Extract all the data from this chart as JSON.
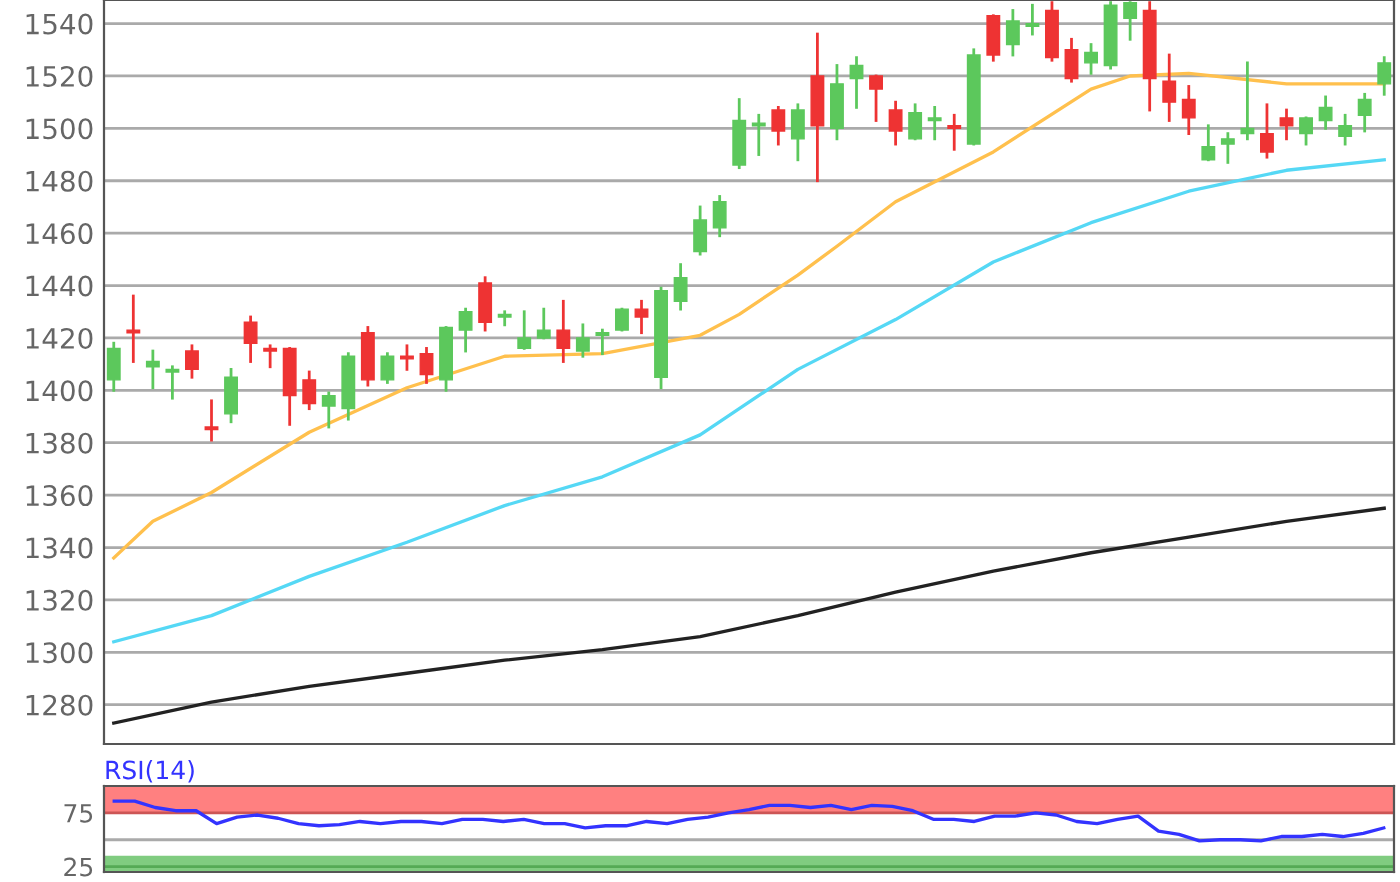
{
  "chart_data": [
    {
      "type": "candlestick",
      "categories": [
        null,
        null,
        null,
        null,
        null,
        null,
        null,
        null,
        null,
        null,
        null,
        null,
        null,
        null,
        null,
        null,
        null,
        null,
        null,
        null,
        null,
        null,
        null,
        null,
        null,
        null,
        null,
        null,
        null,
        null,
        null,
        null,
        null,
        null,
        null,
        null,
        null,
        null,
        null,
        null,
        null,
        null,
        null,
        null,
        null,
        null,
        null,
        null,
        null,
        null,
        null,
        null,
        null,
        null,
        null,
        null,
        null,
        null,
        null,
        null,
        null,
        null,
        null,
        null,
        null,
        null
      ],
      "ohlc": [
        [
          1404,
          1418,
          1400,
          1416
        ],
        [
          1423,
          1436,
          1411,
          1422
        ],
        [
          1409,
          1415,
          1401,
          1411
        ],
        [
          1407,
          1409,
          1397,
          1408
        ],
        [
          1415,
          1417,
          1405,
          1408
        ],
        [
          1386,
          1396,
          1381,
          1385
        ],
        [
          1391,
          1408,
          1388,
          1405
        ],
        [
          1426,
          1428,
          1411,
          1418
        ],
        [
          1416,
          1417,
          1409,
          1415
        ],
        [
          1416,
          1416,
          1387,
          1398
        ],
        [
          1404,
          1407,
          1393,
          1395
        ],
        [
          1394,
          1399,
          1386,
          1398
        ],
        [
          1393,
          1414,
          1389,
          1413
        ],
        [
          1422,
          1424,
          1402,
          1404
        ],
        [
          1404,
          1414,
          1403,
          1413
        ],
        [
          1413,
          1417,
          1408,
          1412
        ],
        [
          1414,
          1416,
          1403,
          1406
        ],
        [
          1404,
          1424,
          1400,
          1424
        ],
        [
          1423,
          1431,
          1415,
          1430
        ],
        [
          1441,
          1443,
          1423,
          1426
        ],
        [
          1428,
          1430,
          1425,
          1429
        ],
        [
          1416,
          1430,
          1416,
          1420
        ],
        [
          1420,
          1431,
          1420,
          1423
        ],
        [
          1423,
          1434,
          1411,
          1416
        ],
        [
          1415,
          1425,
          1413,
          1420
        ],
        [
          1421,
          1423,
          1414,
          1422
        ],
        [
          1423,
          1431,
          1423,
          1431
        ],
        [
          1431,
          1434,
          1422,
          1428
        ],
        [
          1405,
          1439,
          1401,
          1438
        ],
        [
          1434,
          1448,
          1431,
          1443
        ],
        [
          1453,
          1470,
          1452,
          1465
        ],
        [
          1462,
          1474,
          1459,
          1472
        ],
        [
          1486,
          1511,
          1485,
          1503
        ],
        [
          1501,
          1505,
          1490,
          1502
        ],
        [
          1507,
          1508,
          1494,
          1499
        ],
        [
          1496,
          1509,
          1488,
          1507
        ],
        [
          1520,
          1536,
          1480,
          1501
        ],
        [
          1500,
          1524,
          1496,
          1517
        ],
        [
          1519,
          1527,
          1508,
          1524
        ],
        [
          1520,
          1520,
          1503,
          1515
        ],
        [
          1507,
          1510,
          1494,
          1499
        ],
        [
          1496,
          1509,
          1496,
          1506
        ],
        [
          1503,
          1508,
          1496,
          1504
        ],
        [
          1501,
          1505,
          1492,
          1500
        ],
        [
          1494,
          1530,
          1494,
          1528
        ],
        [
          1543,
          1543,
          1526,
          1528
        ],
        [
          1532,
          1545,
          1528,
          1541
        ],
        [
          1539,
          1547,
          1536,
          1540
        ],
        [
          1545,
          1548,
          1526,
          1527
        ],
        [
          1530,
          1534,
          1518,
          1519
        ],
        [
          1525,
          1532,
          1521,
          1529
        ],
        [
          1524,
          1548,
          1523,
          1547
        ],
        [
          1542,
          1548,
          1534,
          1548
        ],
        [
          1545,
          1548,
          1507,
          1519
        ],
        [
          1518,
          1528,
          1503,
          1510
        ],
        [
          1511,
          1516,
          1498,
          1504
        ],
        [
          1488,
          1501,
          1488,
          1493
        ],
        [
          1494,
          1498,
          1487,
          1496
        ],
        [
          1498,
          1525,
          1496,
          1500
        ],
        [
          1498,
          1509,
          1489,
          1491
        ],
        [
          1504,
          1507,
          1496,
          1501
        ],
        [
          1498,
          1504,
          1494,
          1504
        ],
        [
          1503,
          1512,
          1500,
          1508
        ],
        [
          1497,
          1505,
          1494,
          1501
        ],
        [
          1505,
          1513,
          1499,
          1511
        ],
        [
          1517,
          1527,
          1513,
          1525
        ]
      ],
      "colors": [
        "#5cc85c",
        "#ee3333",
        "#5cc85c",
        "#5cc85c",
        "#ee3333",
        "#ee3333",
        "#5cc85c",
        "#ee3333",
        "#ee3333",
        "#ee3333",
        "#ee3333",
        "#5cc85c",
        "#5cc85c",
        "#ee3333",
        "#5cc85c",
        "#ee3333",
        "#ee3333",
        "#5cc85c",
        "#5cc85c",
        "#ee3333",
        "#5cc85c",
        "#5cc85c",
        "#5cc85c",
        "#ee3333",
        "#5cc85c",
        "#5cc85c",
        "#5cc85c",
        "#ee3333",
        "#5cc85c",
        "#5cc85c",
        "#5cc85c",
        "#5cc85c",
        "#5cc85c",
        "#5cc85c",
        "#ee3333",
        "#5cc85c",
        "#ee3333",
        "#5cc85c",
        "#5cc85c",
        "#ee3333",
        "#ee3333",
        "#5cc85c",
        "#5cc85c",
        "#ee3333",
        "#5cc85c",
        "#ee3333",
        "#5cc85c",
        "#5cc85c",
        "#ee3333",
        "#ee3333",
        "#5cc85c",
        "#5cc85c",
        "#5cc85c",
        "#ee3333",
        "#ee3333",
        "#ee3333",
        "#5cc85c",
        "#5cc85c",
        "#5cc85c",
        "#ee3333",
        "#ee3333",
        "#5cc85c",
        "#5cc85c",
        "#5cc85c",
        "#5cc85c",
        "#5cc85c"
      ],
      "series": [
        {
          "type": "line",
          "color": "#ffc04d",
          "values": [
            1336,
            null,
            1350,
            null,
            null,
            1361,
            null,
            null,
            null,
            null,
            1384,
            null,
            null,
            null,
            null,
            1401,
            null,
            null,
            null,
            null,
            1413,
            null,
            null,
            null,
            null,
            1414,
            null,
            null,
            null,
            null,
            1421,
            null,
            1429,
            null,
            null,
            1444,
            null,
            1455,
            null,
            null,
            1472,
            null,
            null,
            null,
            null,
            1491,
            null,
            null,
            null,
            null,
            1515,
            null,
            1520,
            null,
            null,
            1521,
            null,
            null,
            null,
            null,
            1517,
            null,
            null,
            null,
            null,
            1517
          ]
        },
        {
          "type": "line",
          "color": "#55d8f5",
          "values": [
            1304,
            null,
            null,
            null,
            null,
            1314,
            null,
            null,
            null,
            null,
            1329,
            null,
            null,
            null,
            null,
            1342,
            null,
            null,
            null,
            null,
            1356,
            null,
            null,
            null,
            null,
            1367,
            null,
            null,
            null,
            null,
            1383,
            null,
            null,
            null,
            null,
            1408,
            null,
            null,
            null,
            null,
            1427,
            null,
            null,
            null,
            null,
            1449,
            null,
            null,
            null,
            null,
            1464,
            null,
            null,
            null,
            null,
            1476,
            null,
            null,
            null,
            null,
            1484,
            null,
            null,
            null,
            null,
            1488
          ]
        },
        {
          "type": "line",
          "color": "#222222",
          "values": [
            1273,
            null,
            null,
            null,
            null,
            1281,
            null,
            null,
            null,
            null,
            1287,
            null,
            null,
            null,
            null,
            1292,
            null,
            null,
            null,
            null,
            1297,
            null,
            null,
            null,
            null,
            1301,
            null,
            null,
            null,
            null,
            1306,
            null,
            null,
            null,
            null,
            1314,
            null,
            null,
            null,
            null,
            1323,
            null,
            null,
            null,
            null,
            1331,
            null,
            null,
            null,
            null,
            1338,
            null,
            null,
            null,
            null,
            1344,
            null,
            null,
            null,
            null,
            1350,
            null,
            null,
            null,
            null,
            1355
          ]
        }
      ],
      "ylim": [
        1265,
        1549
      ],
      "yticks": [
        1280,
        1300,
        1320,
        1340,
        1360,
        1380,
        1400,
        1420,
        1440,
        1460,
        1480,
        1500,
        1520,
        1540
      ],
      "grid": "y",
      "tick_labels": "y"
    },
    {
      "type": "line",
      "title": "RSI(14)",
      "categories": [
        null,
        null,
        null,
        null,
        null,
        null,
        null,
        null,
        null,
        null,
        null,
        null,
        null,
        null,
        null,
        null,
        null,
        null,
        null,
        null,
        null,
        null,
        null,
        null,
        null,
        null,
        null,
        null,
        null,
        null,
        null,
        null,
        null,
        null,
        null,
        null,
        null,
        null,
        null,
        null,
        null,
        null,
        null,
        null,
        null,
        null,
        null,
        null,
        null,
        null,
        null,
        null,
        null,
        null,
        null,
        null,
        null,
        null,
        null,
        null,
        null,
        null,
        null
      ],
      "series": [
        {
          "color": "#3333ff",
          "values": [
            86,
            86,
            80,
            77,
            77,
            65,
            71,
            73,
            70,
            65,
            63,
            64,
            67,
            65,
            67,
            67,
            65,
            69,
            69,
            67,
            69,
            65,
            65,
            61,
            63,
            63,
            67,
            65,
            69,
            71,
            75,
            78,
            82,
            82,
            80,
            82,
            78,
            82,
            81,
            77,
            69,
            69,
            67,
            72,
            72,
            75,
            73,
            67,
            65,
            69,
            72,
            58,
            55,
            49,
            50,
            50,
            49,
            53,
            53,
            55,
            53,
            56,
            61
          ]
        }
      ],
      "bands": [
        {
          "axis": "y",
          "from": 75,
          "to": 100,
          "color": "#ff8080"
        },
        {
          "axis": "y",
          "from": 20,
          "to": 35,
          "color": "#80cc80"
        }
      ],
      "ref_lines": [
        {
          "axis": "y",
          "value": 75,
          "color": "#cc5555"
        },
        {
          "axis": "y",
          "value": 50,
          "color": "#aaaaaa"
        },
        {
          "axis": "y",
          "value": 25,
          "color": "#55aa55"
        }
      ],
      "ylim": [
        20,
        100
      ],
      "yticks": [
        25,
        75
      ],
      "tick_labels": "y"
    }
  ]
}
